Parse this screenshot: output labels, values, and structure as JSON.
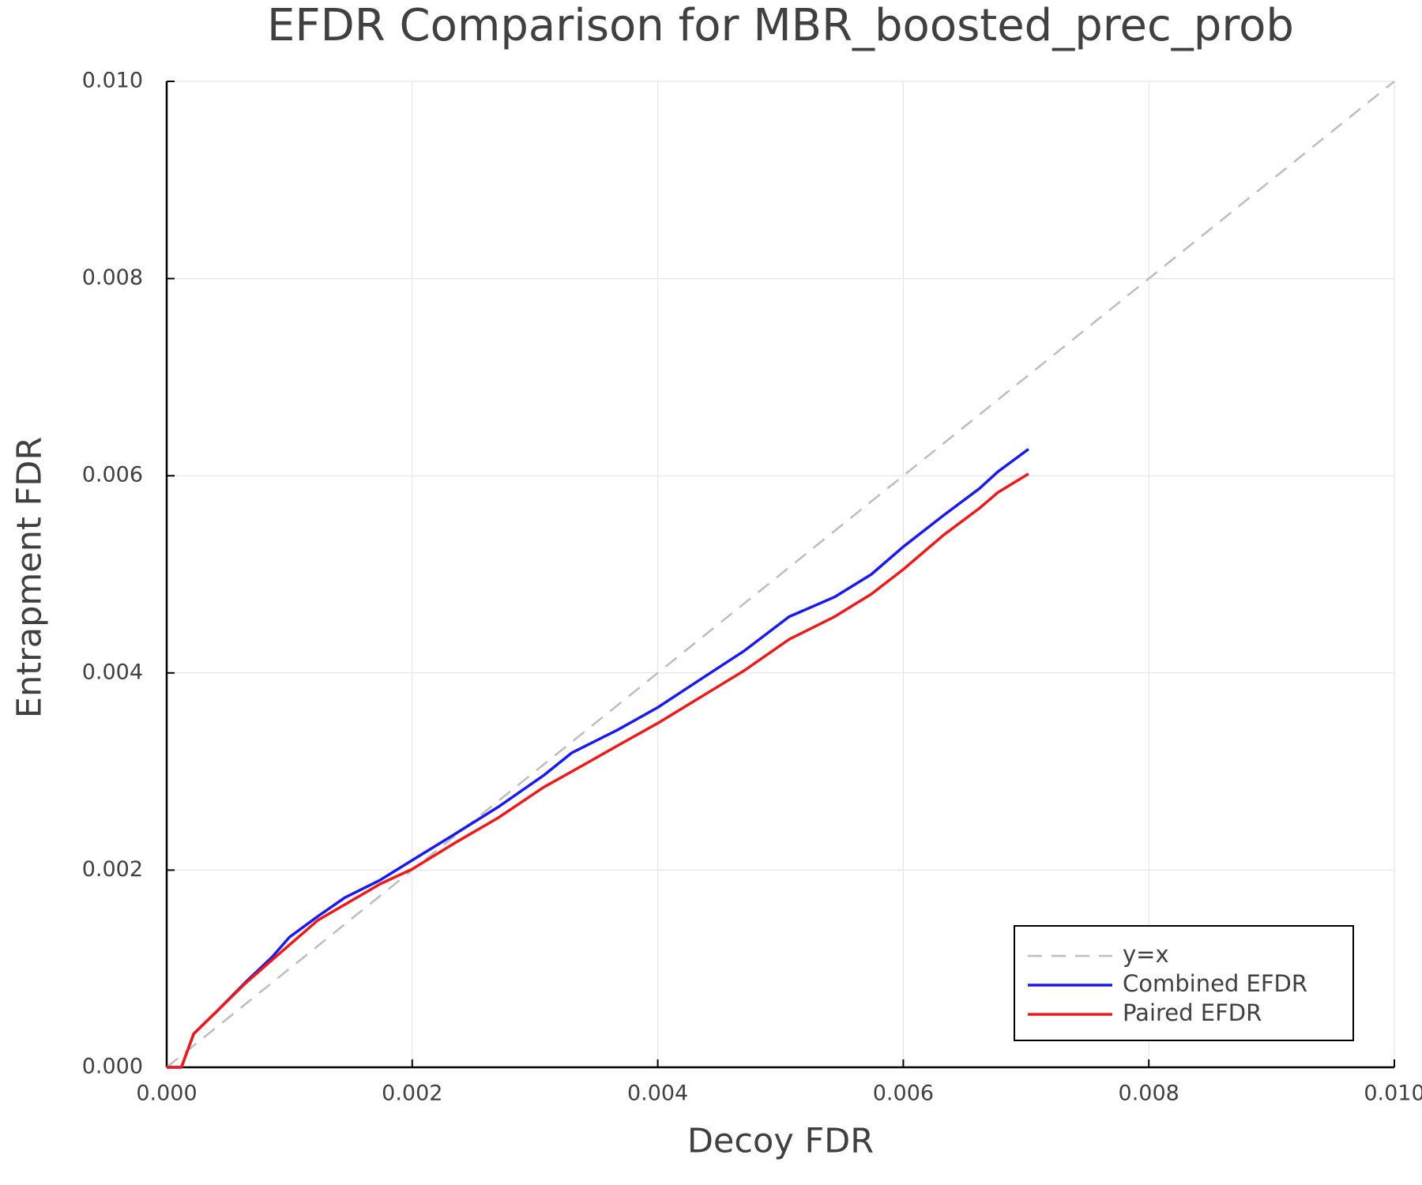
{
  "chart_data": {
    "type": "line",
    "title": "EFDR Comparison for MBR_boosted_prec_prob",
    "x_label": "Decoy FDR",
    "y_label": "Entrapment FDR",
    "xlim": [
      0,
      0.01
    ],
    "ylim": [
      0,
      0.01
    ],
    "xticks": [
      {
        "value": 0,
        "label": "0.000"
      },
      0.002,
      0.004,
      0.006,
      0.008,
      {
        "value": 0.01,
        "label": "0.010"
      }
    ],
    "yticks": [
      {
        "value": 0,
        "label": "0.000"
      },
      0.002,
      0.004,
      0.006,
      0.008,
      {
        "value": 0.01,
        "label": "0.010"
      }
    ],
    "grid": true,
    "legend": "bottom-right",
    "series": [
      {
        "name": "y=x",
        "color": "#bdbdbd",
        "dashed": true,
        "x": [
          0,
          0.01
        ],
        "values": [
          0,
          0.01
        ]
      },
      {
        "name": "Combined EFDR",
        "color": "#1a1aee",
        "dashed": false,
        "x": [
          0,
          0.00012,
          0.00022,
          0.00041,
          0.00064,
          0.00086,
          0.001,
          0.00123,
          0.00145,
          0.00174,
          0.002,
          0.00234,
          0.0027,
          0.00307,
          0.0033,
          0.00367,
          0.004,
          0.00433,
          0.0047,
          0.00507,
          0.00544,
          0.00574,
          0.006,
          0.00633,
          0.00662,
          0.00677,
          0.00702
        ],
        "values": [
          0,
          0,
          0.00034,
          0.00057,
          0.00086,
          0.00112,
          0.00132,
          0.00153,
          0.00172,
          0.0019,
          0.0021,
          0.00236,
          0.00264,
          0.00296,
          0.00319,
          0.00342,
          0.00365,
          0.00392,
          0.00422,
          0.00457,
          0.00477,
          0.005,
          0.00528,
          0.0056,
          0.00587,
          0.00604,
          0.00627
        ]
      },
      {
        "name": "Paired EFDR",
        "color": "#ee1a1a",
        "dashed": false,
        "x": [
          0,
          0.00012,
          0.00022,
          0.00041,
          0.00064,
          0.00086,
          0.00123,
          0.00174,
          0.002,
          0.00234,
          0.0027,
          0.00307,
          0.0033,
          0.00367,
          0.004,
          0.00433,
          0.0047,
          0.00507,
          0.00544,
          0.00574,
          0.006,
          0.00633,
          0.00662,
          0.00677,
          0.00702
        ],
        "values": [
          0,
          0,
          0.00034,
          0.00057,
          0.00085,
          0.00109,
          0.00149,
          0.00186,
          0.00201,
          0.00227,
          0.00253,
          0.00284,
          0.003,
          0.00326,
          0.00349,
          0.00374,
          0.00402,
          0.00434,
          0.00457,
          0.0048,
          0.00505,
          0.0054,
          0.00567,
          0.00583,
          0.00602
        ]
      }
    ]
  }
}
